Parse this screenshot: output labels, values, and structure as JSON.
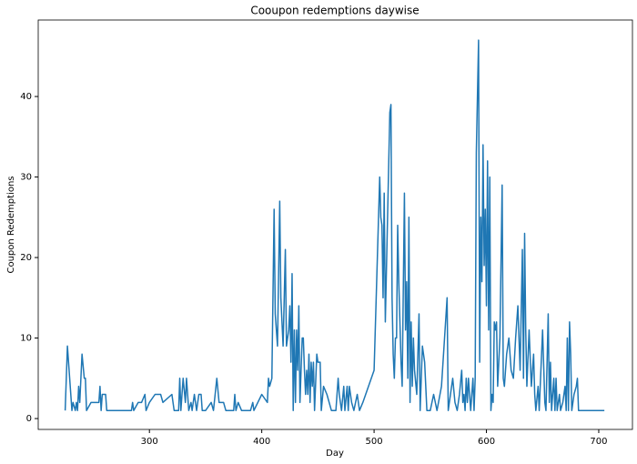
{
  "chart_data": {
    "type": "line",
    "title": "Cooupon redemptions daywise",
    "x_label": "Day",
    "y_label": "Coupon Redemptions",
    "color": "#1f77b4",
    "x": [
      225,
      227,
      229,
      231,
      232,
      234,
      235,
      236,
      237,
      238,
      240,
      242,
      243,
      244,
      248,
      255,
      256,
      257,
      258,
      261,
      262,
      270,
      280,
      284,
      285,
      286,
      290,
      293,
      296,
      297,
      300,
      305,
      310,
      312,
      320,
      322,
      326,
      327,
      328,
      330,
      332,
      333,
      335,
      337,
      338,
      340,
      342,
      344,
      346,
      347,
      350,
      355,
      357,
      360,
      362,
      366,
      368,
      375,
      376,
      377,
      379,
      382,
      385,
      390,
      392,
      393,
      400,
      405,
      406,
      407,
      409,
      411,
      412,
      414,
      416,
      417,
      419,
      421,
      422,
      424,
      425,
      426,
      427,
      428,
      429,
      430,
      431,
      432,
      433,
      434,
      436,
      437,
      438,
      439,
      440,
      441,
      442,
      443,
      444,
      445,
      446,
      447,
      449,
      450,
      452,
      453,
      455,
      458,
      460,
      462,
      466,
      468,
      469,
      471,
      473,
      474,
      476,
      477,
      478,
      480,
      482,
      485,
      487,
      490,
      500,
      505,
      506,
      507,
      508,
      509,
      510,
      512,
      514,
      515,
      516,
      517,
      518,
      519,
      520,
      521,
      522,
      524,
      525,
      527,
      528,
      529,
      530,
      531,
      532,
      533,
      534,
      535,
      536,
      538,
      539,
      540,
      541,
      543,
      545,
      547,
      550,
      553,
      556,
      560,
      565,
      566,
      568,
      570,
      572,
      574,
      576,
      578,
      579,
      580,
      581,
      582,
      583,
      584,
      586,
      588,
      589,
      590,
      591,
      593,
      594,
      595,
      596,
      597,
      598,
      599,
      600,
      601,
      602,
      603,
      604,
      605,
      606,
      607,
      608,
      609,
      610,
      612,
      614,
      615,
      616,
      618,
      620,
      622,
      624,
      626,
      628,
      630,
      632,
      633,
      634,
      635,
      636,
      638,
      640,
      642,
      643,
      644,
      646,
      647,
      650,
      652,
      653,
      655,
      656,
      657,
      658,
      660,
      661,
      662,
      663,
      665,
      666,
      668,
      670,
      671,
      672,
      673,
      674,
      675,
      676,
      678,
      680,
      681,
      682,
      690,
      705
    ],
    "values": [
      1,
      9,
      5,
      1,
      2,
      1,
      2,
      1,
      4,
      2,
      8,
      5,
      5,
      1,
      2,
      2,
      4,
      1,
      3,
      3,
      1,
      1,
      1,
      1,
      2,
      1,
      2,
      2,
      3,
      1,
      2,
      3,
      3,
      2,
      3,
      1,
      1,
      5,
      1,
      5,
      2,
      5,
      1,
      2,
      1,
      3,
      1,
      3,
      3,
      1,
      1,
      2,
      1,
      5,
      2,
      2,
      1,
      1,
      3,
      1,
      2,
      1,
      1,
      1,
      2,
      1,
      3,
      2,
      5,
      4,
      5,
      26,
      13,
      9,
      27,
      15,
      9,
      21,
      9,
      11,
      14,
      7,
      18,
      1,
      11,
      2,
      11,
      6,
      14,
      2,
      10,
      10,
      6,
      3,
      6,
      3,
      8,
      2,
      7,
      4,
      7,
      1,
      8,
      7,
      7,
      1,
      4,
      3,
      2,
      1,
      1,
      5,
      3,
      1,
      4,
      1,
      4,
      1,
      4,
      2,
      1,
      3,
      1,
      2,
      6,
      30,
      25,
      24,
      15,
      28,
      12,
      25,
      38,
      39,
      15,
      8,
      5,
      10,
      10,
      24,
      17,
      7,
      4,
      28,
      11,
      17,
      5,
      25,
      2,
      12,
      4,
      10,
      6,
      3,
      8,
      13,
      1,
      9,
      7,
      1,
      1,
      3,
      1,
      4,
      15,
      1,
      3,
      5,
      2,
      1,
      3,
      6,
      2,
      3,
      1,
      5,
      2,
      5,
      1,
      5,
      1,
      5,
      33,
      47,
      7,
      25,
      17,
      34,
      19,
      26,
      14,
      32,
      11,
      30,
      1,
      3,
      2,
      12,
      11,
      12,
      4,
      10,
      29,
      5,
      4,
      8,
      10,
      6,
      5,
      10,
      14,
      6,
      21,
      5,
      23,
      11,
      4,
      11,
      4,
      8,
      3,
      1,
      4,
      1,
      11,
      2,
      1,
      13,
      2,
      7,
      1,
      5,
      1,
      5,
      1,
      3,
      1,
      2,
      4,
      1,
      10,
      1,
      12,
      8,
      1,
      3,
      4,
      5,
      1,
      1,
      1
    ],
    "xlim": [
      201,
      730
    ],
    "ylim": [
      -1.35,
      49.5
    ],
    "xticks": [
      300,
      400,
      500,
      600,
      700
    ],
    "yticks": [
      0,
      10,
      20,
      30,
      40
    ],
    "grid": false
  }
}
